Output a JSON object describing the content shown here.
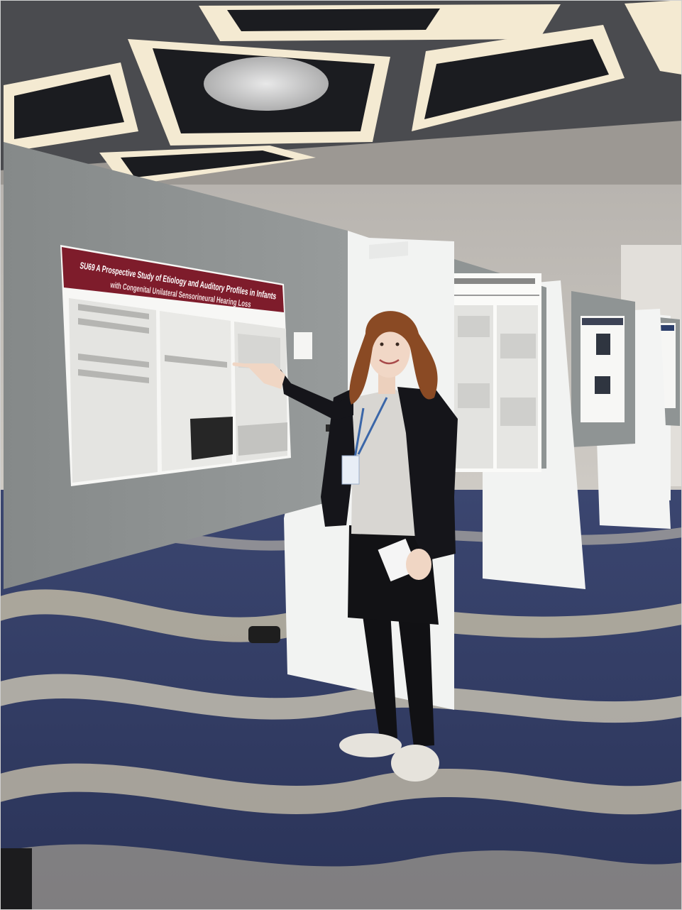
{
  "photo": {
    "poster_main": {
      "title_line1": "SU69 A Prospective Study of Etiology and Auditory Profiles in Infants",
      "title_line2": "with Congenital Unilateral Sensorineural Hearing Loss"
    },
    "colors": {
      "ceiling": "#3c3d40",
      "ceiling_light": "#f4ead2",
      "wall": "#c9c6c1",
      "board_felt": "#8d9192",
      "board_frame": "#eef0ef",
      "poster_banner": "#7e1c2b",
      "carpet_dark": "#2f3a63",
      "carpet_light": "#c8bfa8",
      "jacket": "#15151a",
      "hair": "#8a4a24",
      "shirt": "#d8d6d2"
    }
  }
}
